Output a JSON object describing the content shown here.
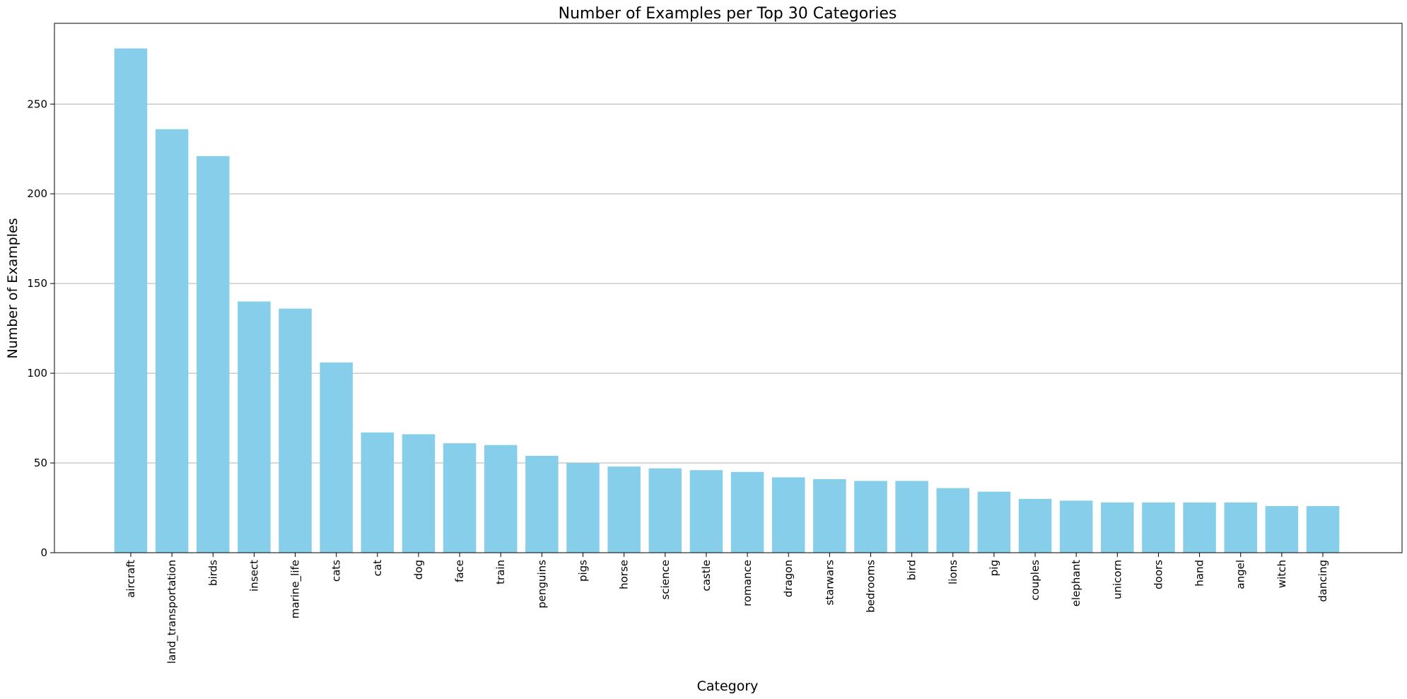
{
  "chart_data": {
    "type": "bar",
    "title": "Number of Examples per Top 30 Categories",
    "xlabel": "Category",
    "ylabel": "Number of Examples",
    "ylim": [
      0,
      295
    ],
    "yticks": [
      0,
      50,
      100,
      150,
      200,
      250
    ],
    "grid": "y-major",
    "legend": "none",
    "bar_color": "#87CEEB",
    "categories": [
      "aircraft",
      "land_transportation",
      "birds",
      "insect",
      "marine_life",
      "cats",
      "cat",
      "dog",
      "face",
      "train",
      "penguins",
      "pigs",
      "horse",
      "science",
      "castle",
      "romance",
      "dragon",
      "starwars",
      "bedrooms",
      "bird",
      "lions",
      "pig",
      "couples",
      "elephant",
      "unicorn",
      "doors",
      "hand",
      "angel",
      "witch",
      "dancing"
    ],
    "values": [
      281,
      236,
      221,
      140,
      136,
      106,
      67,
      66,
      61,
      60,
      54,
      50,
      48,
      47,
      46,
      45,
      42,
      41,
      40,
      40,
      36,
      34,
      30,
      29,
      28,
      28,
      28,
      28,
      26,
      26
    ]
  }
}
